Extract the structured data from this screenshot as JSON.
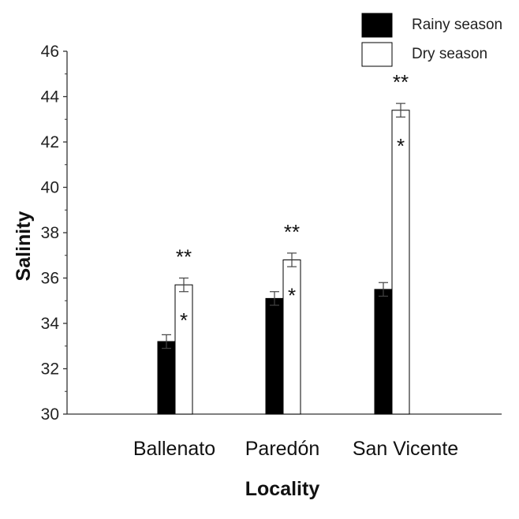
{
  "chart_data": {
    "type": "bar",
    "title": "",
    "xlabel": "Locality",
    "ylabel": "Salinity",
    "ylim": [
      30,
      46
    ],
    "yticks": [
      30,
      32,
      34,
      36,
      38,
      40,
      42,
      44,
      46
    ],
    "categories": [
      "Ballenato",
      "Paredón",
      "San Vicente"
    ],
    "series": [
      {
        "name": "Rainy season",
        "color": "#000000",
        "values": [
          33.2,
          35.1,
          35.5
        ],
        "errors": [
          0.3,
          0.3,
          0.3
        ]
      },
      {
        "name": "Dry season",
        "color": "#ffffff",
        "values": [
          35.7,
          36.8,
          43.4
        ],
        "errors": [
          0.3,
          0.3,
          0.3
        ]
      }
    ],
    "annotations": [
      {
        "category": "Ballenato",
        "top": "**",
        "side": "*"
      },
      {
        "category": "Paredón",
        "top": "**",
        "side": "*"
      },
      {
        "category": "San Vicente",
        "top": "**",
        "side": "*"
      }
    ],
    "legend": "top-right",
    "grid": false
  }
}
